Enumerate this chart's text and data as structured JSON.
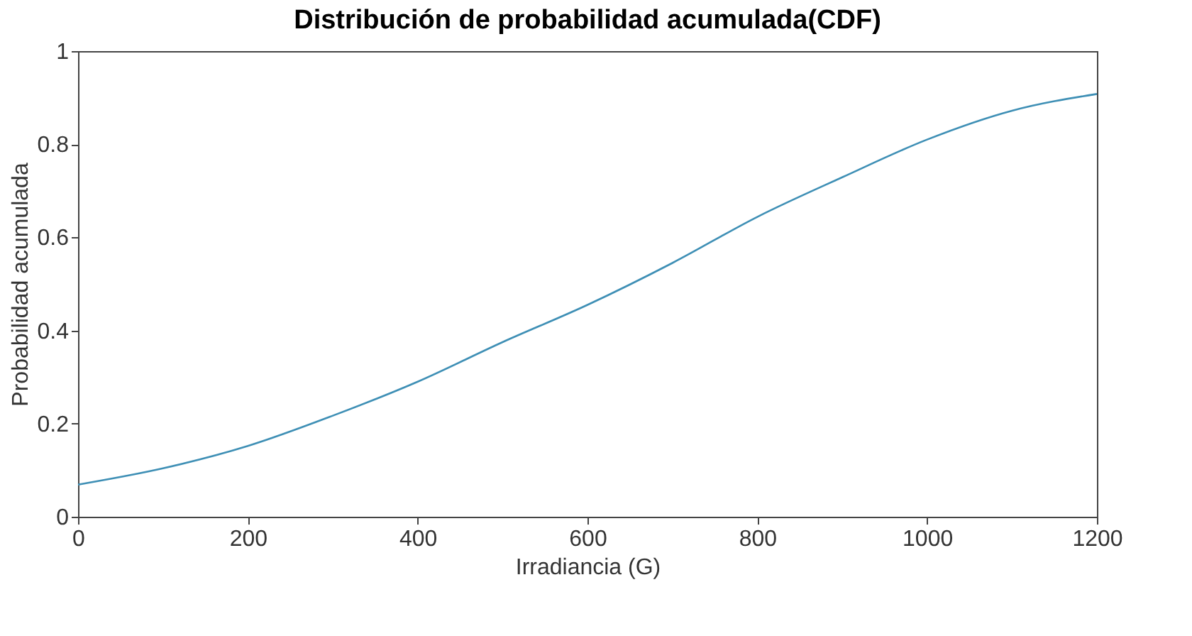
{
  "chart_data": {
    "type": "line",
    "title": "Distribución de probabilidad acumulada(CDF)",
    "xlabel": "Irradiancia (G)",
    "ylabel": "Probabilidad acumulada",
    "x": [
      0,
      100,
      200,
      300,
      400,
      500,
      600,
      700,
      800,
      900,
      1000,
      1100,
      1200
    ],
    "series": [
      {
        "color": "#3e8fb5",
        "values": [
          0.069,
          0.104,
          0.152,
          0.217,
          0.29,
          0.375,
          0.455,
          0.545,
          0.644,
          0.729,
          0.81,
          0.872,
          0.908
        ]
      }
    ],
    "xlim": [
      0,
      1200
    ],
    "xticks": [
      0,
      200,
      400,
      600,
      800,
      1000,
      1200
    ],
    "ylim": [
      0,
      1
    ],
    "yticks": [
      0,
      0.2,
      0.4,
      0.6,
      0.8,
      1
    ],
    "grid": false,
    "legend": false,
    "marker": "none",
    "line_style": "solid"
  }
}
